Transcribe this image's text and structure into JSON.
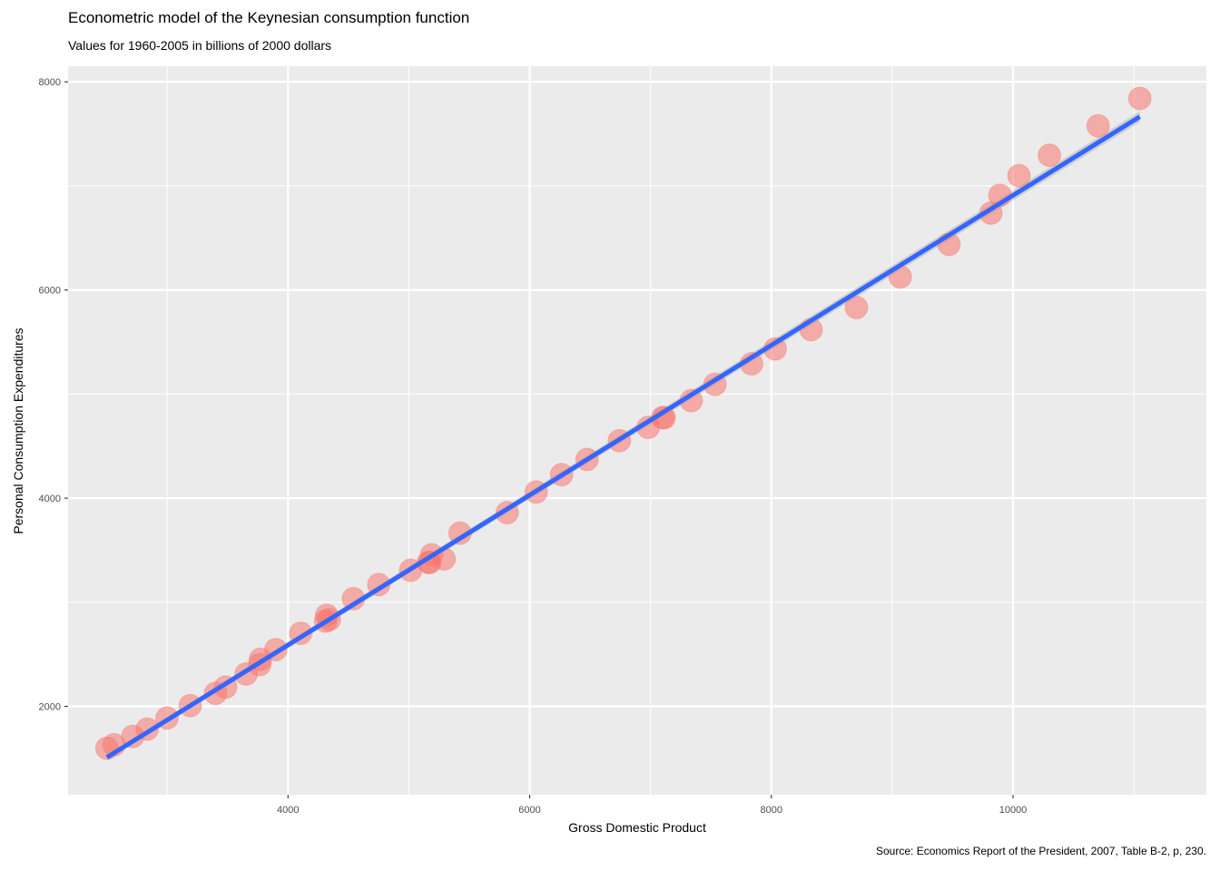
{
  "title": "Econometric model of the Keynesian consumption function",
  "subtitle": "Values for 1960-2005 in billions of 2000 dollars",
  "caption": "Source: Economics Report of the President, 2007, Table B-2, p, 230.",
  "chart_data": {
    "type": "scatter",
    "xlabel": "Gross Domestic Product",
    "ylabel": "Personal Consumption Expenditures",
    "xlim": [
      2180,
      11600
    ],
    "ylim": [
      1150,
      8150
    ],
    "x_ticks": [
      4000,
      6000,
      8000,
      10000
    ],
    "y_ticks": [
      2000,
      4000,
      6000,
      8000
    ],
    "grid": true,
    "points": [
      [
        2502,
        1597
      ],
      [
        2561,
        1630
      ],
      [
        2715,
        1711
      ],
      [
        2835,
        1781
      ],
      [
        2999,
        1888
      ],
      [
        3191,
        2007
      ],
      [
        3400,
        2125
      ],
      [
        3484,
        2185
      ],
      [
        3653,
        2311
      ],
      [
        3765,
        2400
      ],
      [
        3772,
        2452
      ],
      [
        3899,
        2545
      ],
      [
        4105,
        2702
      ],
      [
        4342,
        2834
      ],
      [
        4320,
        2875
      ],
      [
        4311,
        2819
      ],
      [
        4541,
        3034
      ],
      [
        4751,
        3170
      ],
      [
        5015,
        3307
      ],
      [
        5173,
        3383
      ],
      [
        5162,
        3383
      ],
      [
        5292,
        3417
      ],
      [
        5189,
        3456
      ],
      [
        5424,
        3664
      ],
      [
        5814,
        3861
      ],
      [
        6054,
        4059
      ],
      [
        6264,
        4226
      ],
      [
        6475,
        4372
      ],
      [
        6742,
        4552
      ],
      [
        6981,
        4680
      ],
      [
        7113,
        4773
      ],
      [
        7101,
        4774
      ],
      [
        7337,
        4937
      ],
      [
        7533,
        5094
      ],
      [
        7836,
        5291
      ],
      [
        8032,
        5434
      ],
      [
        8329,
        5619
      ],
      [
        8704,
        5832
      ],
      [
        9067,
        6126
      ],
      [
        9470,
        6439
      ],
      [
        9817,
        6739
      ],
      [
        9891,
        6910
      ],
      [
        10049,
        7099
      ],
      [
        10301,
        7295
      ],
      [
        10704,
        7577
      ],
      [
        11049,
        7841
      ]
    ],
    "fit": {
      "method": "lm",
      "x_start": 2502,
      "y_start": 1510,
      "x_end": 11049,
      "y_end": 7665
    },
    "colors": {
      "point": "#F8766D",
      "line": "#3366FF",
      "panel": "#EBEBEB",
      "grid": "#FFFFFF",
      "ribbon": "#999999"
    }
  }
}
